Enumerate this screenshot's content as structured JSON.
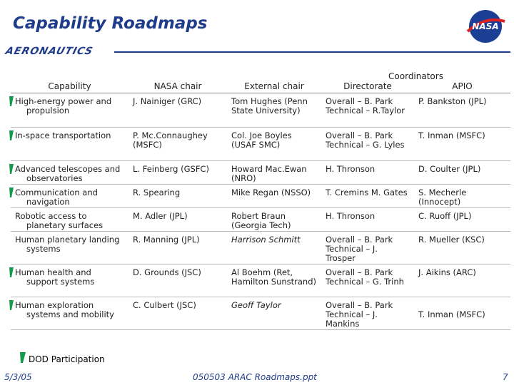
{
  "header": {
    "title": "Capability Roadmaps",
    "logo_left": "AERONAUTICS",
    "logo_right": "NASA"
  },
  "table": {
    "columns": [
      "Capability",
      "NASA chair",
      "External chair",
      "Directorate",
      "APIO"
    ],
    "group_header": "Coordinators",
    "rows": [
      {
        "dod": true,
        "italic_external": false,
        "cells": [
          "High-energy power and propulsion",
          "J. Nainiger (GRC)",
          "Tom Hughes (Penn State University)",
          "Overall – B. Park Technical – R.Taylor",
          "P. Bankston (JPL)"
        ]
      },
      {
        "dod": true,
        "italic_external": false,
        "cells": [
          "In-space transportation",
          "P. Mc.Connaughey (MSFC)",
          "Col. Joe Boyles (USAF SMC)",
          "Overall – B. Park Technical – G. Lyles",
          "T. Inman (MSFC)"
        ]
      },
      {
        "dod": true,
        "italic_external": false,
        "cells": [
          "Advanced telescopes and observatories",
          "L. Feinberg (GSFC)",
          "Howard Mac.Ewan (NRO)",
          "H. Thronson",
          "D. Coulter (JPL)"
        ]
      },
      {
        "dod": true,
        "italic_external": false,
        "cells": [
          "Communication and navigation",
          "R. Spearing",
          "Mike Regan (NSSO)",
          "T. Cremins M. Gates",
          "S. Mecherle (Innocept)"
        ]
      },
      {
        "dod": false,
        "italic_external": false,
        "cells": [
          "Robotic access to planetary surfaces",
          "M. Adler (JPL)",
          "Robert Braun (Georgia Tech)",
          "H. Thronson",
          "C. Ruoff (JPL)"
        ]
      },
      {
        "dod": false,
        "italic_external": true,
        "cells": [
          "Human planetary landing systems",
          "R. Manning (JPL)",
          "Harrison Schmitt",
          "Overall – B. Park Technical – J. Trosper",
          "R. Mueller (KSC)"
        ]
      },
      {
        "dod": true,
        "italic_external": false,
        "cells": [
          "Human health and support systems",
          "D. Grounds (JSC)",
          "Al Boehm (Ret, Hamilton Sunstrand)",
          "Overall – B. Park Technical – G. Trinh",
          "J. Aikins (ARC)"
        ]
      },
      {
        "dod": true,
        "italic_external": true,
        "cells": [
          "Human exploration systems and mobility",
          "C. Culbert (JSC)",
          "Geoff Taylor",
          "Overall – B. Park Technical – J. Mankins",
          "T. Inman (MSFC)"
        ]
      }
    ]
  },
  "legend": {
    "label": "DOD Participation"
  },
  "footer": {
    "date": "5/3/05",
    "file": "050503 ARAC Roadmaps.ppt",
    "page": "7"
  }
}
